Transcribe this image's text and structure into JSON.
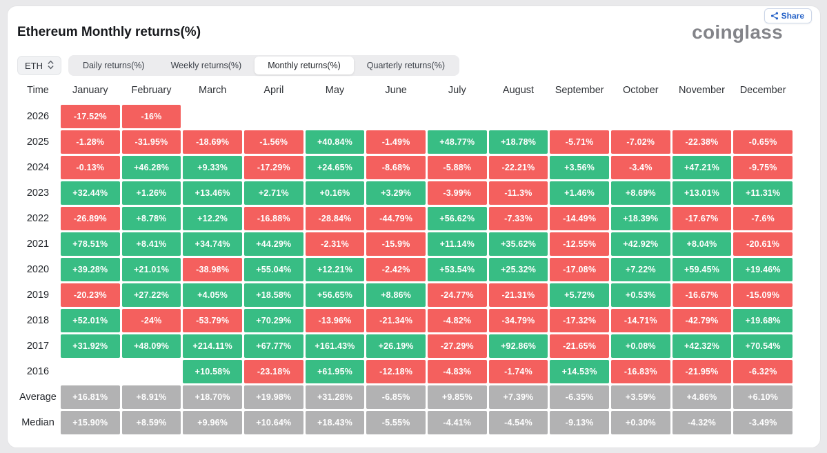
{
  "title": "Ethereum Monthly returns(%)",
  "logo": {
    "text": "coinglass"
  },
  "share": {
    "label": "Share"
  },
  "controls": {
    "symbol": "ETH",
    "tabs": [
      {
        "label": "Daily returns(%)",
        "active": false
      },
      {
        "label": "Weekly returns(%)",
        "active": false
      },
      {
        "label": "Monthly returns(%)",
        "active": true
      },
      {
        "label": "Quarterly returns(%)",
        "active": false
      }
    ]
  },
  "colors": {
    "positive": "#38bd84",
    "negative": "#f4605e",
    "summary": "#b2b2b3",
    "accent_blue": "#2461c7"
  },
  "chart_data": {
    "type": "heatmap",
    "title": "Ethereum Monthly returns(%)",
    "time_header": "Time",
    "months": [
      "January",
      "February",
      "March",
      "April",
      "May",
      "June",
      "July",
      "August",
      "September",
      "October",
      "November",
      "December"
    ],
    "rows": [
      {
        "label": "2026",
        "type": "year",
        "values": [
          "-17.52%",
          "-16%",
          "",
          "",
          "",
          "",
          "",
          "",
          "",
          "",
          "",
          ""
        ]
      },
      {
        "label": "2025",
        "type": "year",
        "values": [
          "-1.28%",
          "-31.95%",
          "-18.69%",
          "-1.56%",
          "+40.84%",
          "-1.49%",
          "+48.77%",
          "+18.78%",
          "-5.71%",
          "-7.02%",
          "-22.38%",
          "-0.65%"
        ]
      },
      {
        "label": "2024",
        "type": "year",
        "values": [
          "-0.13%",
          "+46.28%",
          "+9.33%",
          "-17.29%",
          "+24.65%",
          "-8.68%",
          "-5.88%",
          "-22.21%",
          "+3.56%",
          "-3.4%",
          "+47.21%",
          "-9.75%"
        ]
      },
      {
        "label": "2023",
        "type": "year",
        "values": [
          "+32.44%",
          "+1.26%",
          "+13.46%",
          "+2.71%",
          "+0.16%",
          "+3.29%",
          "-3.99%",
          "-11.3%",
          "+1.46%",
          "+8.69%",
          "+13.01%",
          "+11.31%"
        ]
      },
      {
        "label": "2022",
        "type": "year",
        "values": [
          "-26.89%",
          "+8.78%",
          "+12.2%",
          "-16.88%",
          "-28.84%",
          "-44.79%",
          "+56.62%",
          "-7.33%",
          "-14.49%",
          "+18.39%",
          "-17.67%",
          "-7.6%"
        ]
      },
      {
        "label": "2021",
        "type": "year",
        "values": [
          "+78.51%",
          "+8.41%",
          "+34.74%",
          "+44.29%",
          "-2.31%",
          "-15.9%",
          "+11.14%",
          "+35.62%",
          "-12.55%",
          "+42.92%",
          "+8.04%",
          "-20.61%"
        ]
      },
      {
        "label": "2020",
        "type": "year",
        "values": [
          "+39.28%",
          "+21.01%",
          "-38.98%",
          "+55.04%",
          "+12.21%",
          "-2.42%",
          "+53.54%",
          "+25.32%",
          "-17.08%",
          "+7.22%",
          "+59.45%",
          "+19.46%"
        ]
      },
      {
        "label": "2019",
        "type": "year",
        "values": [
          "-20.23%",
          "+27.22%",
          "+4.05%",
          "+18.58%",
          "+56.65%",
          "+8.86%",
          "-24.77%",
          "-21.31%",
          "+5.72%",
          "+0.53%",
          "-16.67%",
          "-15.09%"
        ]
      },
      {
        "label": "2018",
        "type": "year",
        "values": [
          "+52.01%",
          "-24%",
          "-53.79%",
          "+70.29%",
          "-13.96%",
          "-21.34%",
          "-4.82%",
          "-34.79%",
          "-17.32%",
          "-14.71%",
          "-42.79%",
          "+19.68%"
        ]
      },
      {
        "label": "2017",
        "type": "year",
        "values": [
          "+31.92%",
          "+48.09%",
          "+214.11%",
          "+67.77%",
          "+161.43%",
          "+26.19%",
          "-27.29%",
          "+92.86%",
          "-21.65%",
          "+0.08%",
          "+42.32%",
          "+70.54%"
        ]
      },
      {
        "label": "2016",
        "type": "year",
        "values": [
          "",
          "",
          "+10.58%",
          "-23.18%",
          "+61.95%",
          "-12.18%",
          "-4.83%",
          "-1.74%",
          "+14.53%",
          "-16.83%",
          "-21.95%",
          "-6.32%"
        ]
      },
      {
        "label": "Average",
        "type": "summary",
        "values": [
          "+16.81%",
          "+8.91%",
          "+18.70%",
          "+19.98%",
          "+31.28%",
          "-6.85%",
          "+9.85%",
          "+7.39%",
          "-6.35%",
          "+3.59%",
          "+4.86%",
          "+6.10%"
        ]
      },
      {
        "label": "Median",
        "type": "summary",
        "values": [
          "+15.90%",
          "+8.59%",
          "+9.96%",
          "+10.64%",
          "+18.43%",
          "-5.55%",
          "-4.41%",
          "-4.54%",
          "-9.13%",
          "+0.30%",
          "-4.32%",
          "-3.49%"
        ]
      }
    ]
  }
}
